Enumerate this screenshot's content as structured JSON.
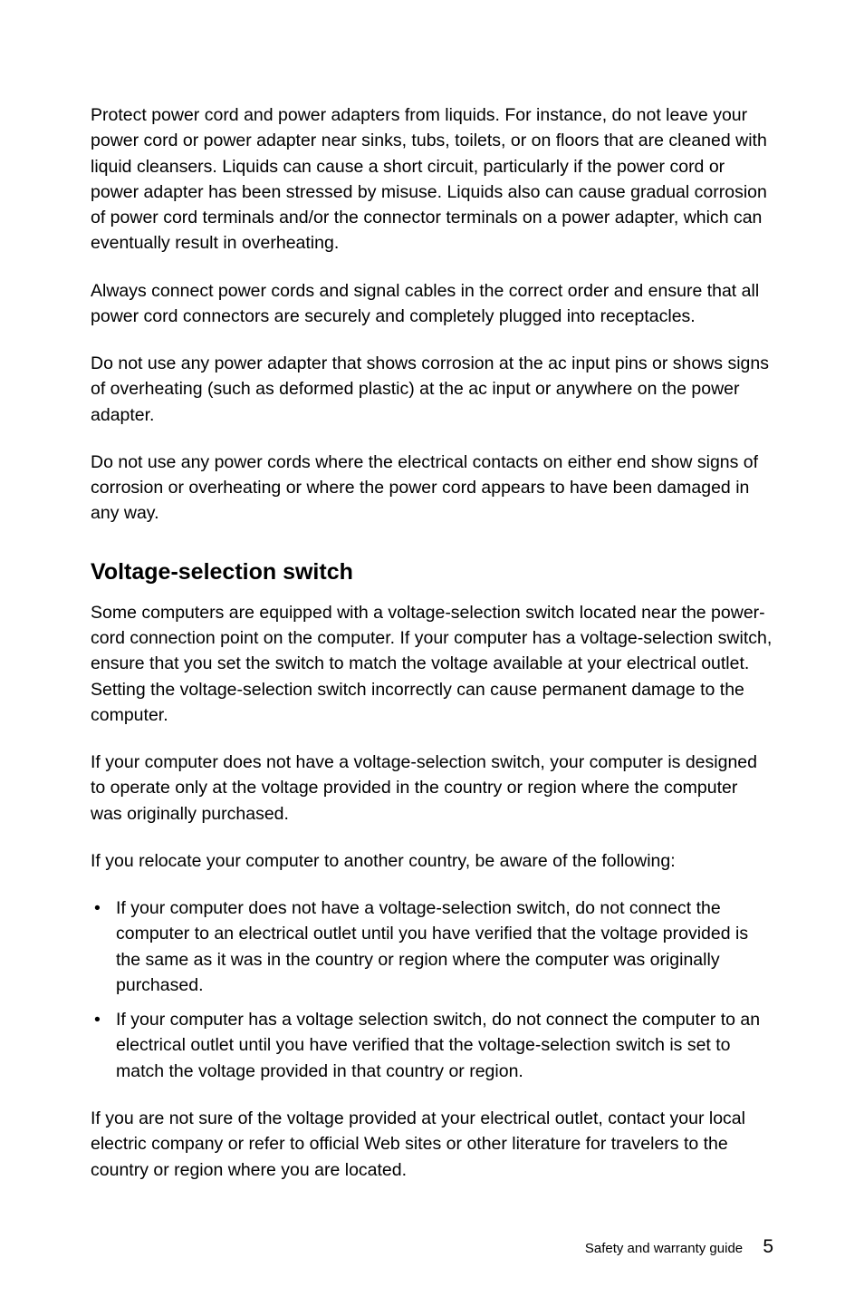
{
  "paragraphs": {
    "p1": "Protect power cord and power adapters from liquids. For instance, do not leave your power cord or power adapter near sinks, tubs, toilets, or on floors that are cleaned with liquid cleansers. Liquids can cause a short circuit, particularly if the power cord or power adapter has been stressed by misuse. Liquids also can cause gradual corrosion of power cord terminals and/or the connector terminals on a power adapter, which can eventually result in overheating.",
    "p2": "Always connect power cords and signal cables in the correct order and ensure that all power cord connectors are securely and completely plugged into receptacles.",
    "p3": "Do not use any power adapter that shows corrosion at the ac input pins or shows signs of overheating (such as deformed plastic) at the ac input or anywhere on the power adapter.",
    "p4": "Do not use any power cords where the electrical contacts on either end show signs of corrosion or overheating or where the power cord appears to have been damaged in any way.",
    "p5": "Some computers are equipped with a voltage-selection switch located near the power-cord connection point on the computer. If your computer has a voltage-selection switch, ensure that you set the switch to match the voltage available at your electrical outlet. Setting the voltage-selection switch incorrectly can cause permanent damage to the computer.",
    "p6": "If your computer does not have a voltage-selection switch, your computer is designed to operate only at the voltage provided in the country or region where the computer was originally purchased.",
    "p7": "If you relocate your computer to another country, be aware of the following:",
    "p8": "If you are not sure of the voltage provided at your electrical outlet, contact your local electric company or refer to official Web sites or other literature for travelers to the country or region where you are located."
  },
  "heading": "Voltage-selection switch",
  "bullets": {
    "b1": "If your computer does not have a voltage-selection switch, do not connect the computer to an electrical outlet until you have verified that the voltage provided is the same as it was in the country or region where the computer was originally purchased.",
    "b2": "If your computer has a voltage selection switch, do not connect the computer to an electrical outlet until you have verified that the voltage-selection switch is set to match the voltage provided in that country or region."
  },
  "footer": {
    "label": "Safety and warranty guide",
    "page": "5"
  },
  "colors": {
    "background": "#ffffff",
    "text": "#000000"
  },
  "typography": {
    "body_fontsize": 19.5,
    "heading_fontsize": 25,
    "footer_fontsize": 15,
    "pagenum_fontsize": 21,
    "line_height": 1.45
  }
}
